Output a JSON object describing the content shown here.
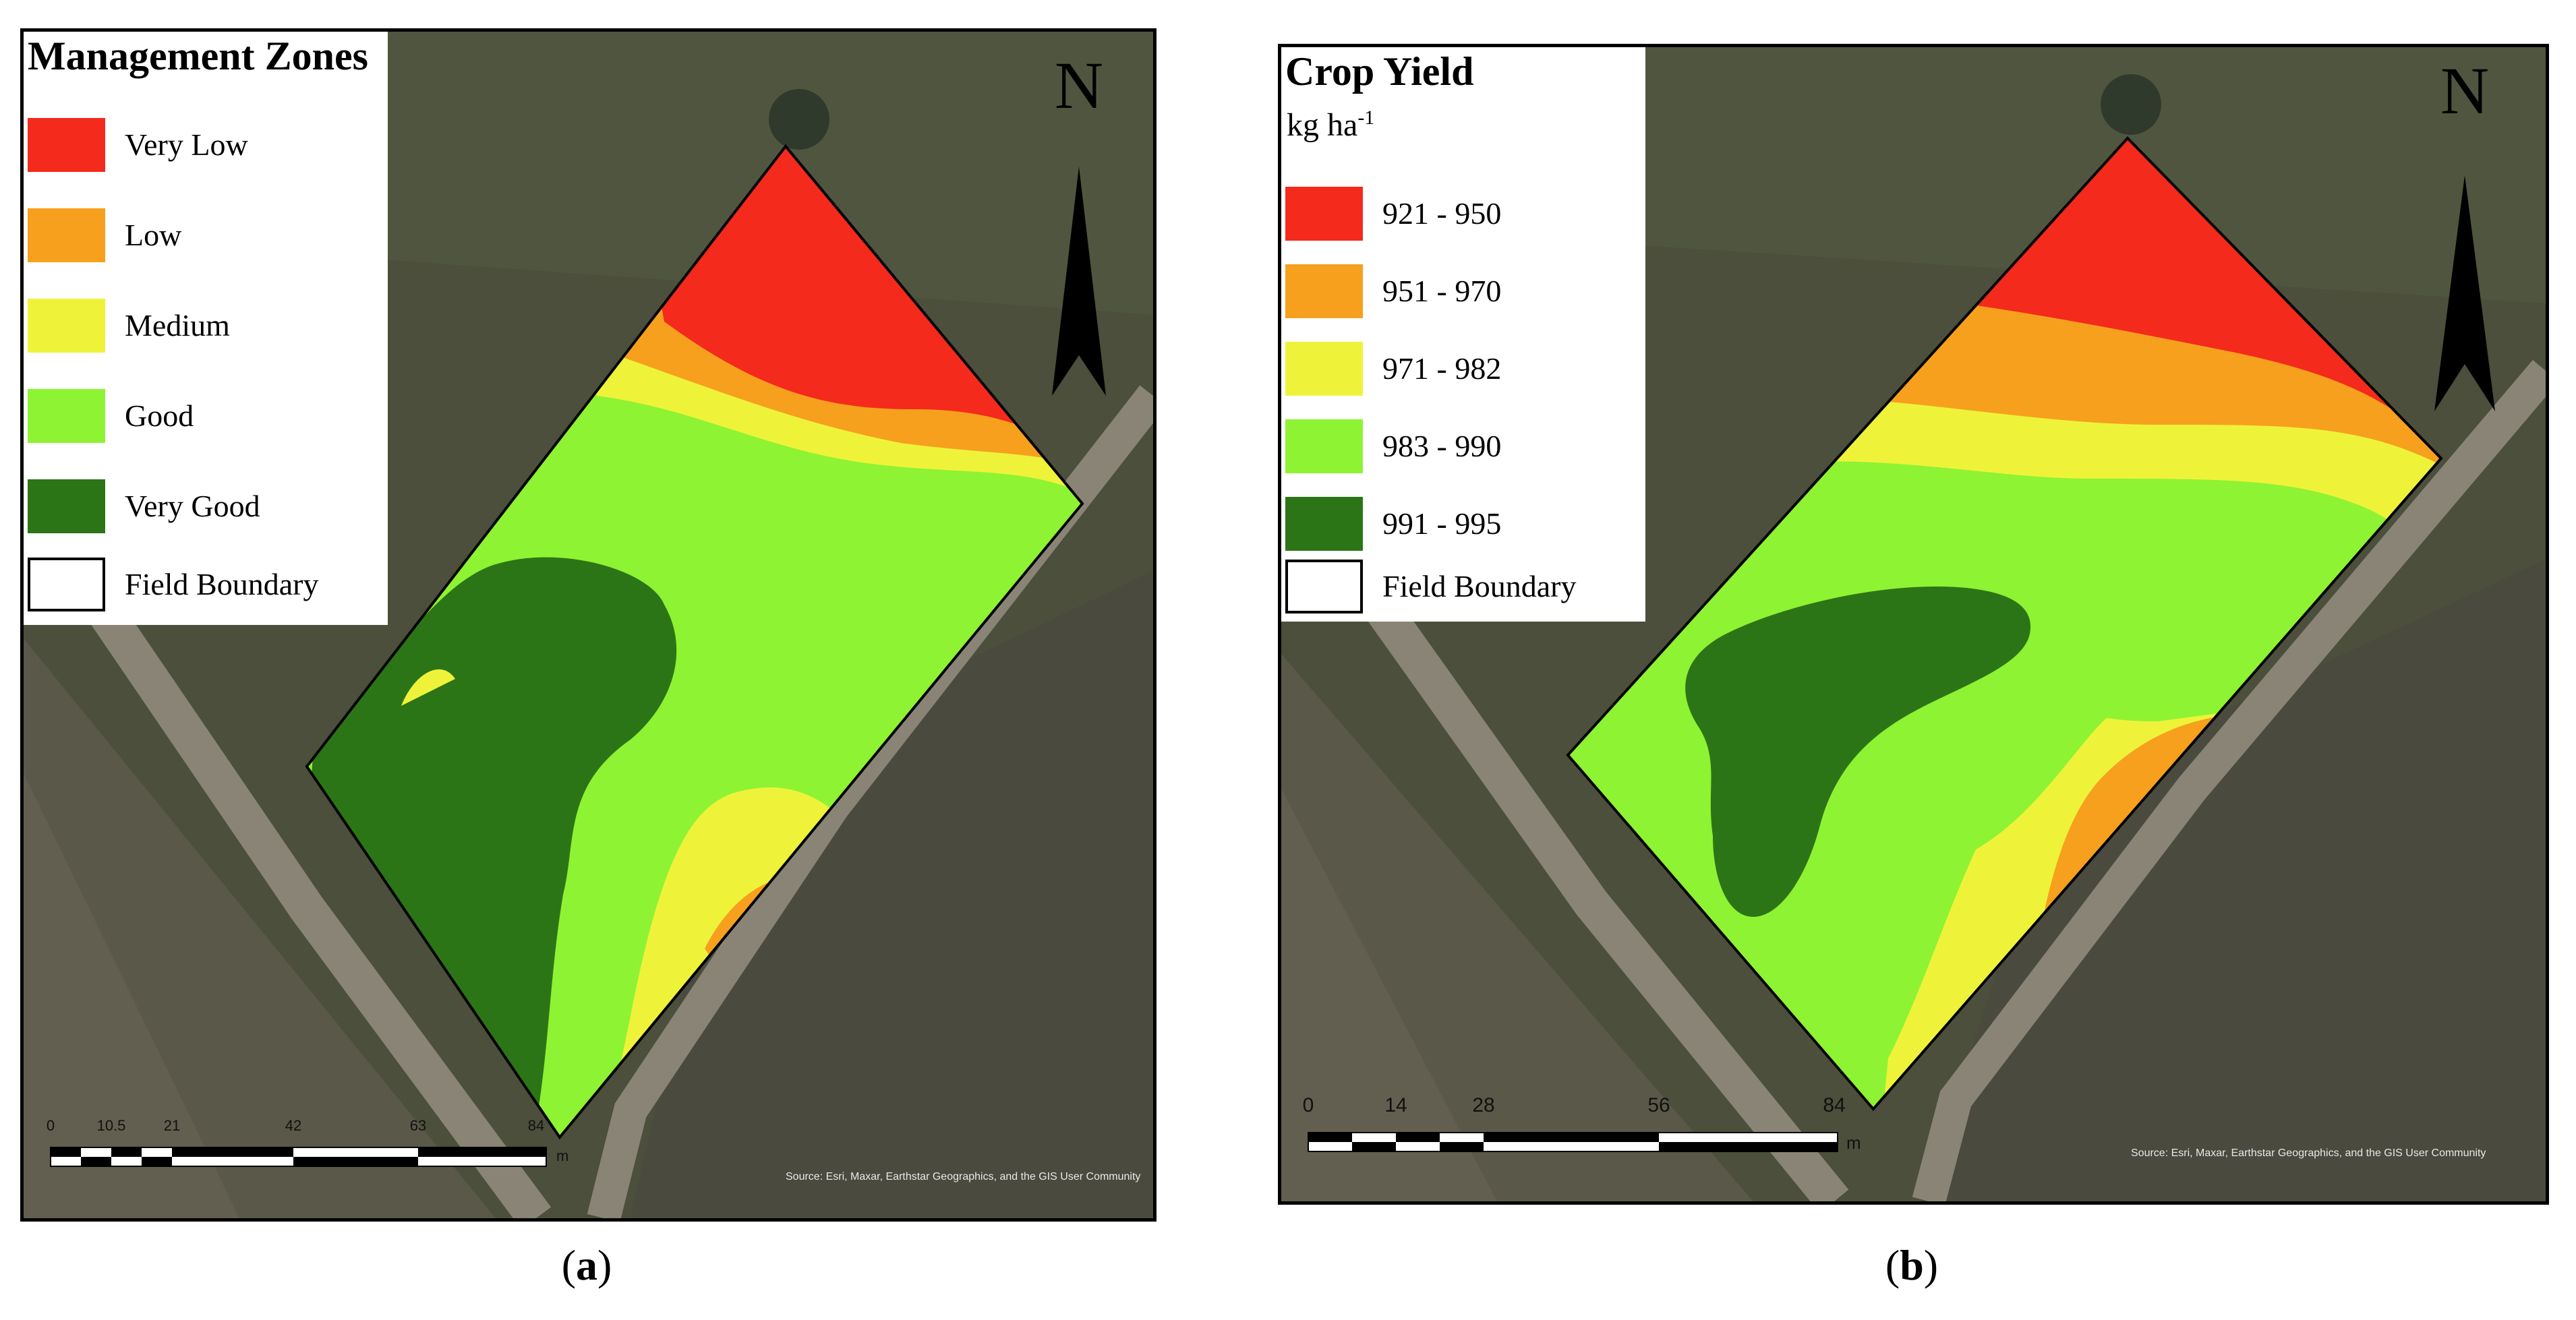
{
  "panels": [
    {
      "id": "a",
      "caption_letter": "a",
      "legend": {
        "title": "Management Zones",
        "unit": "",
        "items": [
          {
            "label": "Very Low",
            "color": "#f42a1c"
          },
          {
            "label": "Low",
            "color": "#f6a01e"
          },
          {
            "label": "Medium",
            "color": "#eef33a"
          },
          {
            "label": "Good",
            "color": "#8ef332"
          },
          {
            "label": "Very Good",
            "color": "#2c7516"
          },
          {
            "label": "Field Boundary",
            "color": "#ffffff"
          }
        ]
      },
      "north_label": "N",
      "scale": {
        "ticks": [
          "0",
          "10.5",
          "21",
          "42",
          "63",
          "84"
        ],
        "unit": "m"
      },
      "attribution": "Source: Esri, Maxar, Earthstar Geographics, and the GIS User Community"
    },
    {
      "id": "b",
      "caption_letter": "b",
      "legend": {
        "title": "Crop Yield",
        "unit": "kg ha",
        "unit_sup": "-1",
        "items": [
          {
            "label": "921 - 950",
            "color": "#f42a1c"
          },
          {
            "label": "951 - 970",
            "color": "#f6a01e"
          },
          {
            "label": "971 - 982",
            "color": "#eef33a"
          },
          {
            "label": "983 - 990",
            "color": "#8ef332"
          },
          {
            "label": "991 - 995",
            "color": "#2c7516"
          },
          {
            "label": "Field Boundary",
            "color": "#ffffff"
          }
        ]
      },
      "north_label": "N",
      "scale": {
        "ticks": [
          "0",
          "14",
          "28",
          "56",
          "84"
        ],
        "unit": "m"
      },
      "attribution": "Source: Esri, Maxar, Earthstar Geographics, and the GIS User Community"
    }
  ]
}
